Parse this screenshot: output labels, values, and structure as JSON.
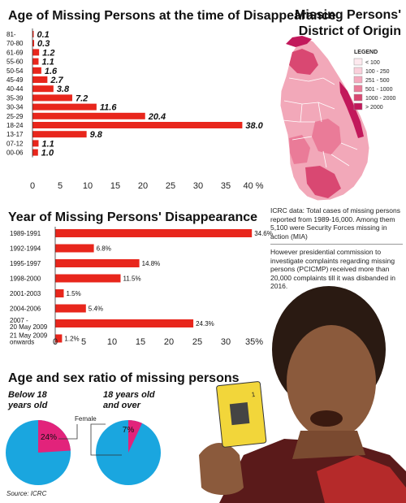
{
  "colors": {
    "bar": "#e8261c",
    "pie_main": "#1aa6df",
    "pie_accent": "#e2237b",
    "map_base": "#f2a8b9"
  },
  "chart_data": [
    {
      "type": "bar",
      "orientation": "horizontal",
      "title": "Age of Missing Persons at the time of Disappearance",
      "categories": [
        "81-",
        "70-80",
        "61-69",
        "55-60",
        "50-54",
        "45-49",
        "40-44",
        "35-39",
        "30-34",
        "25-29",
        "18-24",
        "13-17",
        "07-12",
        "00-06"
      ],
      "values": [
        0.1,
        0.3,
        1.2,
        1.1,
        1.6,
        2.7,
        3.8,
        7.2,
        11.6,
        20.4,
        38.0,
        9.8,
        1.1,
        1.0
      ],
      "value_labels": [
        "0.1",
        "0.3",
        "1.2",
        "1.1",
        "1.6",
        "2.7",
        "3.8",
        "7.2",
        "11.6",
        "20.4",
        "38.0",
        "9.8",
        "1.1",
        "1.0"
      ],
      "xlim": [
        0,
        40
      ],
      "ticks": [
        "0",
        "5",
        "10",
        "15",
        "20",
        "25",
        "30",
        "35",
        "40 %"
      ],
      "grid": false
    },
    {
      "type": "bar",
      "orientation": "horizontal",
      "title": "Year of Missing Persons' Disappearance",
      "categories": [
        "1989-1991",
        "1992-1994",
        "1995-1997",
        "1998-2000",
        "2001-2003",
        "2004-2006",
        "2007 - 20 May 2009",
        "21 May 2009 onwards"
      ],
      "values": [
        34.6,
        6.8,
        14.8,
        11.5,
        1.5,
        5.4,
        24.3,
        1.2
      ],
      "value_labels": [
        "34.6%",
        "6.8%",
        "14.8%",
        "11.5%",
        "1.5%",
        "5.4%",
        "24.3%",
        "1.2%"
      ],
      "xlim": [
        0,
        35
      ],
      "ticks": [
        "0",
        "5",
        "10",
        "15",
        "20",
        "25",
        "30",
        "35%"
      ],
      "grid": false
    },
    {
      "type": "pie",
      "title": "Below 18 years old",
      "slices": [
        {
          "label": "Female",
          "value": 24,
          "display": "24%"
        },
        {
          "value": 76
        }
      ]
    },
    {
      "type": "pie",
      "title": "18 years old and over",
      "slices": [
        {
          "label": "Female",
          "value": 7,
          "display": "7%"
        },
        {
          "value": 93
        }
      ]
    }
  ],
  "map": {
    "title_line1": "Missing Persons'",
    "title_line2": "District of Origin",
    "legend_title": "LEGEND",
    "legend": [
      {
        "label": "< 100",
        "color": "#fde9ee"
      },
      {
        "label": "100 - 250",
        "color": "#fad0db"
      },
      {
        "label": "251 - 500",
        "color": "#f4a9bd"
      },
      {
        "label": "501 - 1000",
        "color": "#ea7b98"
      },
      {
        "label": "1000 - 2000",
        "color": "#d94872"
      },
      {
        "label": "> 2000",
        "color": "#c2185b"
      }
    ]
  },
  "notes": {
    "icrc": "ICRC data: Total cases of missing persons reported from 1989-16,000. Among them 5,100 were Security Forces missing in action (MIA)",
    "pcicmp": "However presidential commission to investigate complaints regarding missing persons (PCICMP) received more than 20,000 complaints till it was disbanded in 2016."
  },
  "section3": {
    "title": "Age and sex ratio of missing persons",
    "female_label": "Female"
  },
  "photo": {
    "card_text": "1"
  },
  "source": "Source: ICRC"
}
